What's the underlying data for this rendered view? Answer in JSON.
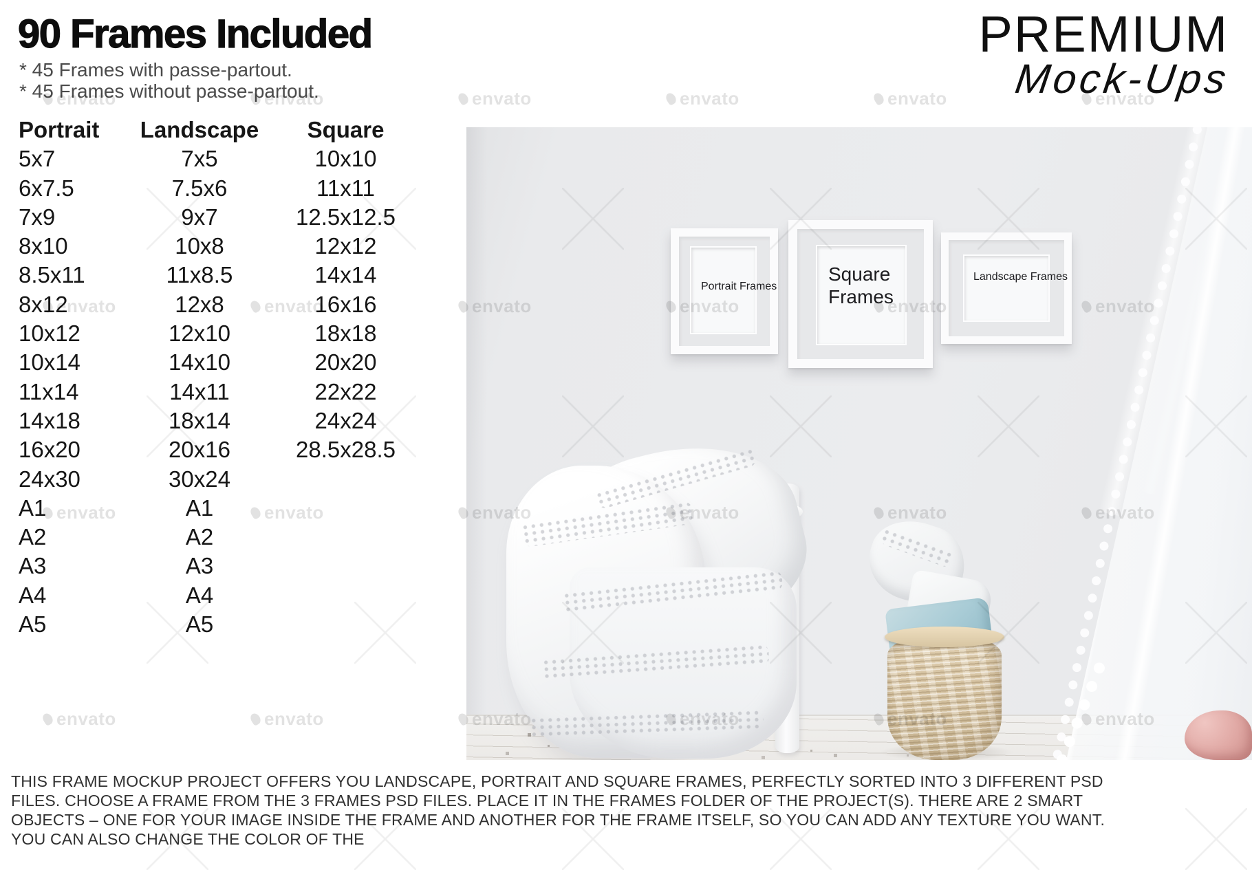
{
  "header": {
    "title": "90 Frames Included",
    "bullets": [
      "* 45 Frames with passe-partout.",
      "* 45 Frames without passe-partout."
    ]
  },
  "logo": {
    "line1": "PREMIUM",
    "line2": "Mock-Ups"
  },
  "size_table": {
    "columns": [
      "Portrait",
      "Landscape",
      "Square"
    ],
    "portrait": [
      "5x7",
      "6x7.5",
      "7x9",
      "8x10",
      "8.5x11",
      "8x12",
      "10x12",
      "10x14",
      "11x14",
      "14x18",
      "16x20",
      "24x30",
      "A1",
      "A2",
      "A3",
      "A4",
      "A5"
    ],
    "landscape": [
      "7x5",
      "7.5x6",
      "9x7",
      "10x8",
      "11x8.5",
      "12x8",
      "12x10",
      "14x10",
      "14x11",
      "18x14",
      "20x16",
      "30x24",
      "A1",
      "A2",
      "A3",
      "A4",
      "A5"
    ],
    "square": [
      "10x10",
      "11x11",
      "12.5x12.5",
      "12x12",
      "14x14",
      "16x16",
      "18x18",
      "20x20",
      "22x22",
      "24x24",
      "28.5x28.5"
    ]
  },
  "photo": {
    "frames": {
      "portrait_label": "Portrait Frames",
      "square_label": "Square Frames",
      "landscape_label": "Landscape Frames"
    }
  },
  "watermark": {
    "text": "envato"
  },
  "footer": {
    "description": "THIS FRAME MOCKUP PROJECT OFFERS YOU LANDSCAPE, PORTRAIT AND SQUARE FRAMES, PERFECTLY SORTED INTO 3 DIFFERENT PSD FILES. CHOOSE A FRAME FROM THE 3 FRAMES PSD FILES. PLACE IT IN THE FRAMES FOLDER OF THE PROJECT(S). THERE ARE 2 SMART OBJECTS – ONE FOR YOUR IMAGE INSIDE THE FRAME AND ANOTHER FOR THE FRAME ITSELF, SO YOU CAN ADD ANY TEXTURE YOU WANT. YOU CAN ALSO CHANGE THE COLOR OF THE"
  },
  "colors": {
    "wall": "#e9eaec",
    "basket_tan": "#d9c6a4",
    "pillow_blue": "#a9ccd6",
    "cushion_pink": "#e0a8a4"
  }
}
